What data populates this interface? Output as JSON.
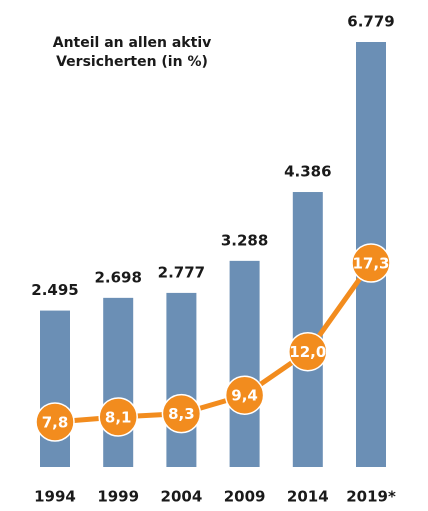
{
  "chart_data": {
    "type": "bar",
    "title": [
      "Anteil an allen aktiv",
      "Versicherten (in %)"
    ],
    "categories": [
      "1994",
      "1999",
      "2004",
      "2009",
      "2014",
      "2019*"
    ],
    "series": [
      {
        "type": "bar",
        "color": "#6b8fb5",
        "values": [
          2495,
          2698,
          2777,
          3288,
          4386,
          6779
        ],
        "value_labels": [
          "2.495",
          "2.698",
          "2.777",
          "3.288",
          "4.386",
          "6.779"
        ]
      },
      {
        "type": "line",
        "color": "#f28c1e",
        "values": [
          7.8,
          8.1,
          8.3,
          9.4,
          12.0,
          17.3
        ],
        "value_labels": [
          "7,8",
          "8,1",
          "8,3",
          "9,4",
          "12,0",
          "17,3"
        ]
      }
    ]
  }
}
